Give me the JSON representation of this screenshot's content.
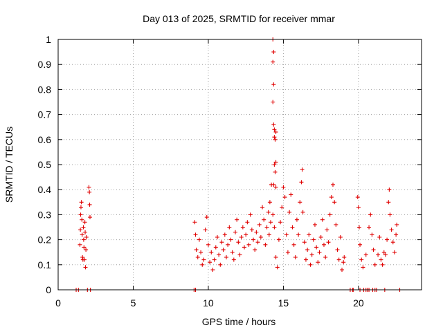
{
  "chart_data": {
    "type": "scatter",
    "title": "Day 013 of 2025, SRMTID for receiver mmar",
    "xlabel": "GPS time / hours",
    "ylabel": "SRMTID / TECUs",
    "xlim": [
      0,
      24.2
    ],
    "ylim": [
      0,
      1
    ],
    "xticks": [
      0,
      5,
      10,
      15,
      20
    ],
    "yticks": [
      0,
      0.1,
      0.2,
      0.3,
      0.4,
      0.5,
      0.6,
      0.7,
      0.8,
      0.9,
      1
    ],
    "xtick_labels": [
      "0",
      "5",
      "10",
      "15",
      "20"
    ],
    "ytick_labels": [
      "0",
      "0.1",
      "0.2",
      "0.3",
      "0.4",
      "0.5",
      "0.6",
      "0.7",
      "0.8",
      "0.9",
      "1"
    ],
    "grid": true,
    "marker": "+",
    "series": [
      {
        "color": "#e00000",
        "points": [
          [
            1.2,
            0
          ],
          [
            1.35,
            0
          ],
          [
            1.95,
            0
          ],
          [
            2.15,
            0
          ],
          [
            9.05,
            0
          ],
          [
            9.15,
            0
          ],
          [
            19.45,
            0
          ],
          [
            19.6,
            0
          ],
          [
            19.65,
            0
          ],
          [
            20.1,
            0
          ],
          [
            20.35,
            0
          ],
          [
            20.5,
            0
          ],
          [
            20.6,
            0
          ],
          [
            20.7,
            0
          ],
          [
            20.95,
            0
          ],
          [
            21.1,
            0
          ],
          [
            21.2,
            0
          ],
          [
            21.75,
            0
          ],
          [
            22.75,
            0
          ],
          [
            1.45,
            0.18
          ],
          [
            1.48,
            0.24
          ],
          [
            1.5,
            0.3
          ],
          [
            1.52,
            0.33
          ],
          [
            1.55,
            0.35
          ],
          [
            1.58,
            0.28
          ],
          [
            1.6,
            0.22
          ],
          [
            1.62,
            0.13
          ],
          [
            1.65,
            0.12
          ],
          [
            1.68,
            0.25
          ],
          [
            1.7,
            0.2
          ],
          [
            1.72,
            0.17
          ],
          [
            1.75,
            0.12
          ],
          [
            1.78,
            0.27
          ],
          [
            1.8,
            0.23
          ],
          [
            1.82,
            0.09
          ],
          [
            1.85,
            0.16
          ],
          [
            1.88,
            0.21
          ],
          [
            2.05,
            0.41
          ],
          [
            2.08,
            0.39
          ],
          [
            2.1,
            0.34
          ],
          [
            2.12,
            0.29
          ],
          [
            9.1,
            0.27
          ],
          [
            9.15,
            0.22
          ],
          [
            9.2,
            0.16
          ],
          [
            9.3,
            0.13
          ],
          [
            9.4,
            0.2
          ],
          [
            9.5,
            0.15
          ],
          [
            9.6,
            0.1
          ],
          [
            9.7,
            0.12
          ],
          [
            9.8,
            0.24
          ],
          [
            9.9,
            0.29
          ],
          [
            10.0,
            0.18
          ],
          [
            10.1,
            0.11
          ],
          [
            10.2,
            0.15
          ],
          [
            10.3,
            0.08
          ],
          [
            10.4,
            0.12
          ],
          [
            10.5,
            0.17
          ],
          [
            10.6,
            0.21
          ],
          [
            10.7,
            0.14
          ],
          [
            10.8,
            0.1
          ],
          [
            10.9,
            0.19
          ],
          [
            11.0,
            0.16
          ],
          [
            11.1,
            0.22
          ],
          [
            11.2,
            0.13
          ],
          [
            11.3,
            0.18
          ],
          [
            11.4,
            0.25
          ],
          [
            11.5,
            0.2
          ],
          [
            11.6,
            0.15
          ],
          [
            11.7,
            0.12
          ],
          [
            11.8,
            0.23
          ],
          [
            11.9,
            0.28
          ],
          [
            12.0,
            0.19
          ],
          [
            12.1,
            0.14
          ],
          [
            12.2,
            0.21
          ],
          [
            12.3,
            0.25
          ],
          [
            12.4,
            0.17
          ],
          [
            12.5,
            0.22
          ],
          [
            12.6,
            0.27
          ],
          [
            12.7,
            0.18
          ],
          [
            12.8,
            0.3
          ],
          [
            12.9,
            0.24
          ],
          [
            13.0,
            0.2
          ],
          [
            13.1,
            0.16
          ],
          [
            13.2,
            0.23
          ],
          [
            13.3,
            0.19
          ],
          [
            13.4,
            0.26
          ],
          [
            13.5,
            0.21
          ],
          [
            13.6,
            0.33
          ],
          [
            13.7,
            0.28
          ],
          [
            13.8,
            0.18
          ],
          [
            13.9,
            0.25
          ],
          [
            14.0,
            0.31
          ],
          [
            14.05,
            0.22
          ],
          [
            14.1,
            0.35
          ],
          [
            14.15,
            0.27
          ],
          [
            14.2,
            0.42
          ],
          [
            14.3,
            1.0
          ],
          [
            14.35,
            0.95
          ],
          [
            14.3,
            0.91
          ],
          [
            14.35,
            0.82
          ],
          [
            14.3,
            0.75
          ],
          [
            14.35,
            0.66
          ],
          [
            14.4,
            0.64
          ],
          [
            14.5,
            0.63
          ],
          [
            14.4,
            0.61
          ],
          [
            14.45,
            0.6
          ],
          [
            14.5,
            0.51
          ],
          [
            14.4,
            0.5
          ],
          [
            14.45,
            0.47
          ],
          [
            14.35,
            0.42
          ],
          [
            14.5,
            0.41
          ],
          [
            14.3,
            0.3
          ],
          [
            14.4,
            0.25
          ],
          [
            14.5,
            0.13
          ],
          [
            14.6,
            0.09
          ],
          [
            14.7,
            0.2
          ],
          [
            14.8,
            0.27
          ],
          [
            14.9,
            0.33
          ],
          [
            15.0,
            0.41
          ],
          [
            15.1,
            0.37
          ],
          [
            15.2,
            0.22
          ],
          [
            15.3,
            0.15
          ],
          [
            15.4,
            0.31
          ],
          [
            15.5,
            0.38
          ],
          [
            15.6,
            0.25
          ],
          [
            15.7,
            0.18
          ],
          [
            15.8,
            0.13
          ],
          [
            15.9,
            0.28
          ],
          [
            16.0,
            0.22
          ],
          [
            16.1,
            0.35
          ],
          [
            16.2,
            0.43
          ],
          [
            16.25,
            0.48
          ],
          [
            16.3,
            0.31
          ],
          [
            16.4,
            0.19
          ],
          [
            16.5,
            0.12
          ],
          [
            16.6,
            0.16
          ],
          [
            16.7,
            0.22
          ],
          [
            16.8,
            0.1
          ],
          [
            16.9,
            0.14
          ],
          [
            17.0,
            0.2
          ],
          [
            17.1,
            0.26
          ],
          [
            17.2,
            0.17
          ],
          [
            17.3,
            0.11
          ],
          [
            17.4,
            0.15
          ],
          [
            17.5,
            0.21
          ],
          [
            17.6,
            0.28
          ],
          [
            17.7,
            0.18
          ],
          [
            17.8,
            0.13
          ],
          [
            17.9,
            0.24
          ],
          [
            18.0,
            0.19
          ],
          [
            18.1,
            0.3
          ],
          [
            18.2,
            0.37
          ],
          [
            18.3,
            0.42
          ],
          [
            18.4,
            0.35
          ],
          [
            18.5,
            0.26
          ],
          [
            18.6,
            0.16
          ],
          [
            18.7,
            0.12
          ],
          [
            18.8,
            0.21
          ],
          [
            18.9,
            0.08
          ],
          [
            19.0,
            0.11
          ],
          [
            19.05,
            0.13
          ],
          [
            19.95,
            0.37
          ],
          [
            20.0,
            0.33
          ],
          [
            20.05,
            0.25
          ],
          [
            20.1,
            0.18
          ],
          [
            20.2,
            0.12
          ],
          [
            20.3,
            0.09
          ],
          [
            20.5,
            0.14
          ],
          [
            20.7,
            0.25
          ],
          [
            20.8,
            0.3
          ],
          [
            20.9,
            0.22
          ],
          [
            21.0,
            0.16
          ],
          [
            21.1,
            0.1
          ],
          [
            21.3,
            0.14
          ],
          [
            21.4,
            0.21
          ],
          [
            21.5,
            0.12
          ],
          [
            21.6,
            0.1
          ],
          [
            21.7,
            0.15
          ],
          [
            21.8,
            0.14
          ],
          [
            21.9,
            0.2
          ],
          [
            22.0,
            0.35
          ],
          [
            22.05,
            0.4
          ],
          [
            22.1,
            0.3
          ],
          [
            22.2,
            0.24
          ],
          [
            22.3,
            0.19
          ],
          [
            22.4,
            0.15
          ],
          [
            22.5,
            0.22
          ],
          [
            22.55,
            0.26
          ]
        ]
      }
    ]
  }
}
